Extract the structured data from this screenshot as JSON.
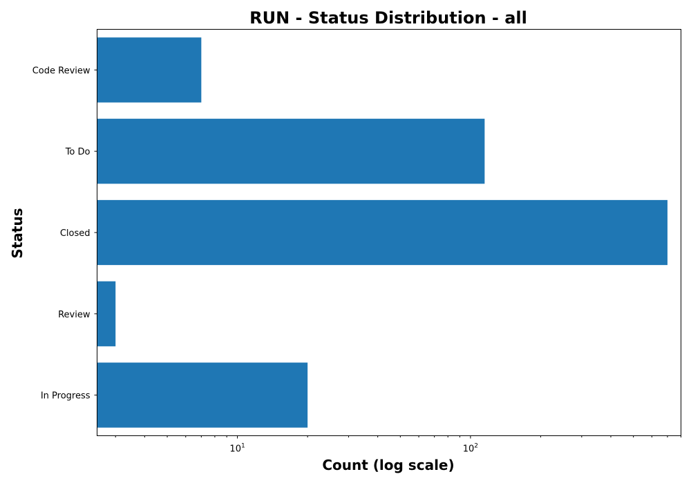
{
  "chart_data": {
    "type": "bar",
    "orientation": "horizontal",
    "title": "RUN - Status Distribution - all",
    "xlabel": "Count (log scale)",
    "ylabel": "Status",
    "xscale": "log",
    "xlim": [
      2.5,
      800
    ],
    "xticks": [
      {
        "value": 10,
        "base": "10",
        "exp": "1"
      },
      {
        "value": 100,
        "base": "10",
        "exp": "2"
      }
    ],
    "categories": [
      "Code Review",
      "To Do",
      "Closed",
      "Review",
      "In Progress"
    ],
    "values": [
      7,
      115,
      700,
      3,
      20
    ],
    "color": "#1f77b4",
    "grid": false,
    "legend": "none"
  }
}
